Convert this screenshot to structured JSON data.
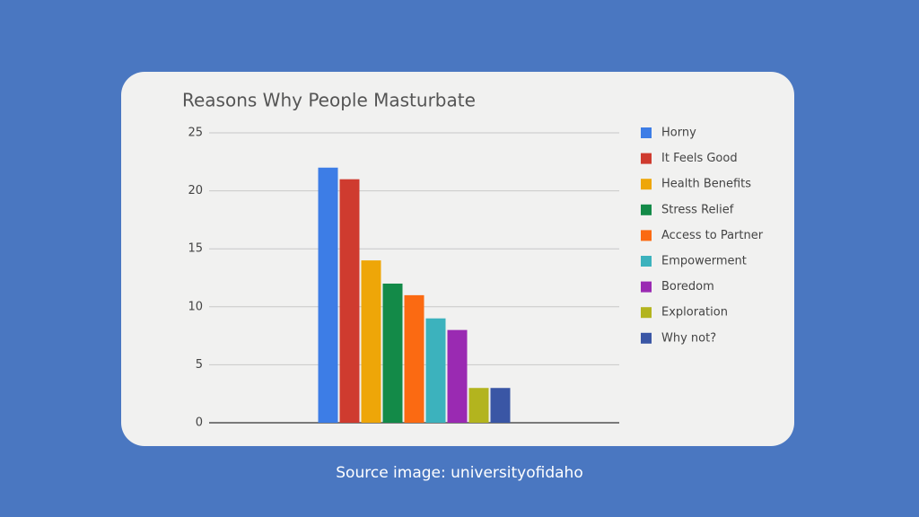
{
  "chart_data": {
    "type": "bar",
    "title": "Reasons Why People Masturbate",
    "categories": [
      null
    ],
    "series": [
      {
        "name": "Horny",
        "color": "#3d7de6",
        "values": [
          22
        ]
      },
      {
        "name": "It Feels Good",
        "color": "#cf3b2f",
        "values": [
          21
        ]
      },
      {
        "name": "Health Benefits",
        "color": "#eea608",
        "values": [
          14
        ]
      },
      {
        "name": "Stress Relief",
        "color": "#138a48",
        "values": [
          12
        ]
      },
      {
        "name": "Access to Partner",
        "color": "#fb6a12",
        "values": [
          11
        ]
      },
      {
        "name": "Empowerment",
        "color": "#3cb2bd",
        "values": [
          9
        ]
      },
      {
        "name": "Boredom",
        "color": "#9a2ab2",
        "values": [
          8
        ]
      },
      {
        "name": "Exploration",
        "color": "#b3b41e",
        "values": [
          3
        ]
      },
      {
        "name": "Why not?",
        "color": "#3a56a5",
        "values": [
          3
        ]
      }
    ],
    "ylim": [
      0,
      25
    ],
    "yticks": [
      0,
      5,
      10,
      15,
      20,
      25
    ],
    "grid": true,
    "legend": "right"
  },
  "caption": "Source image: universityofidaho"
}
